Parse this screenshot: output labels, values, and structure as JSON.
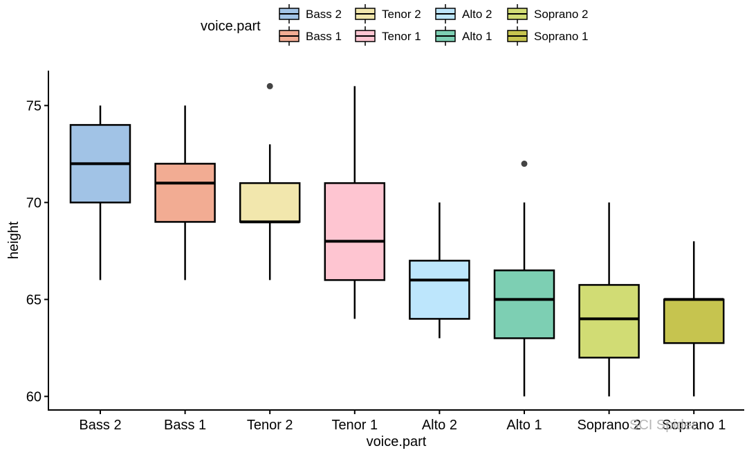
{
  "chart_data": {
    "type": "boxplot",
    "xlabel": "voice.part",
    "ylabel": "height",
    "ylim": [
      59.3,
      76.8
    ],
    "yticks": [
      60,
      65,
      70,
      75
    ],
    "legend": {
      "title": "voice.part",
      "position": "top"
    },
    "groups": [
      {
        "name": "Bass 2",
        "color": "#a1c3e6",
        "min": 66,
        "q1": 70,
        "median": 72,
        "q3": 74,
        "max": 75,
        "outliers": []
      },
      {
        "name": "Bass 1",
        "color": "#f2ac93",
        "min": 66,
        "q1": 69,
        "median": 71,
        "q3": 72,
        "max": 75,
        "outliers": []
      },
      {
        "name": "Tenor 2",
        "color": "#f2e7ad",
        "min": 66,
        "q1": 69,
        "median": 69,
        "q3": 71,
        "max": 73,
        "outliers": [
          76
        ]
      },
      {
        "name": "Tenor 1",
        "color": "#fec5d1",
        "min": 64,
        "q1": 66,
        "median": 68,
        "q3": 71,
        "max": 76,
        "outliers": []
      },
      {
        "name": "Alto 2",
        "color": "#bde6fc",
        "min": 63,
        "q1": 64,
        "median": 66,
        "q3": 67,
        "max": 70,
        "outliers": []
      },
      {
        "name": "Alto 1",
        "color": "#7dcfb3",
        "min": 60,
        "q1": 63,
        "median": 65,
        "q3": 66.5,
        "max": 70,
        "outliers": [
          72
        ]
      },
      {
        "name": "Soprano 2",
        "color": "#d1dc74",
        "min": 60,
        "q1": 62,
        "median": 64,
        "q3": 65.75,
        "max": 70,
        "outliers": []
      },
      {
        "name": "Soprano 1",
        "color": "#c6c44f",
        "min": 60,
        "q1": 62.75,
        "median": 65,
        "q3": 65,
        "max": 68,
        "outliers": []
      }
    ]
  },
  "watermark": "SCI Spider"
}
